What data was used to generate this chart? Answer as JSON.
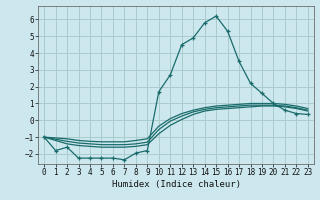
{
  "xlabel": "Humidex (Indice chaleur)",
  "xlim": [
    -0.5,
    23.5
  ],
  "ylim": [
    -2.6,
    6.8
  ],
  "xticks": [
    0,
    1,
    2,
    3,
    4,
    5,
    6,
    7,
    8,
    9,
    10,
    11,
    12,
    13,
    14,
    15,
    16,
    17,
    18,
    19,
    20,
    21,
    22,
    23
  ],
  "yticks": [
    -2,
    -1,
    0,
    1,
    2,
    3,
    4,
    5,
    6
  ],
  "background_color": "#cce8ee",
  "grid_color": "#aacccc",
  "line_color": "#1a6b6b",
  "line1_x": [
    0,
    1,
    2,
    3,
    4,
    5,
    6,
    7,
    8,
    9,
    10,
    11,
    12,
    13,
    14,
    15,
    16,
    17,
    18,
    19,
    20,
    21,
    22,
    23
  ],
  "line1_y": [
    -1.0,
    -1.8,
    -1.6,
    -2.25,
    -2.25,
    -2.25,
    -2.25,
    -2.35,
    -1.95,
    -1.8,
    1.7,
    2.7,
    4.5,
    4.9,
    5.8,
    6.2,
    5.3,
    3.5,
    2.2,
    1.6,
    1.0,
    0.6,
    0.4,
    0.35
  ],
  "line2_x": [
    0,
    2,
    3,
    4,
    5,
    6,
    7,
    8,
    9,
    10,
    11,
    12,
    13,
    14,
    15,
    16,
    17,
    18,
    19,
    20,
    21,
    22,
    23
  ],
  "line2_y": [
    -1.0,
    -1.4,
    -1.5,
    -1.55,
    -1.6,
    -1.6,
    -1.6,
    -1.55,
    -1.45,
    -0.8,
    -0.3,
    0.05,
    0.35,
    0.55,
    0.65,
    0.7,
    0.75,
    0.8,
    0.85,
    0.85,
    0.8,
    0.7,
    0.55
  ],
  "line3_x": [
    0,
    2,
    3,
    4,
    5,
    6,
    7,
    8,
    9,
    10,
    11,
    12,
    13,
    14,
    15,
    16,
    17,
    18,
    19,
    20,
    21,
    22,
    23
  ],
  "line3_y": [
    -1.0,
    -1.25,
    -1.35,
    -1.4,
    -1.45,
    -1.45,
    -1.45,
    -1.4,
    -1.3,
    -0.55,
    -0.05,
    0.25,
    0.5,
    0.65,
    0.75,
    0.8,
    0.85,
    0.9,
    0.9,
    0.9,
    0.85,
    0.75,
    0.6
  ],
  "line4_x": [
    0,
    2,
    3,
    4,
    5,
    6,
    7,
    8,
    9,
    10,
    11,
    12,
    13,
    14,
    15,
    16,
    17,
    18,
    19,
    20,
    21,
    22,
    23
  ],
  "line4_y": [
    -1.0,
    -1.1,
    -1.2,
    -1.25,
    -1.28,
    -1.28,
    -1.28,
    -1.2,
    -1.1,
    -0.35,
    0.1,
    0.4,
    0.6,
    0.75,
    0.85,
    0.9,
    0.95,
    1.0,
    1.0,
    1.0,
    0.95,
    0.85,
    0.7
  ]
}
